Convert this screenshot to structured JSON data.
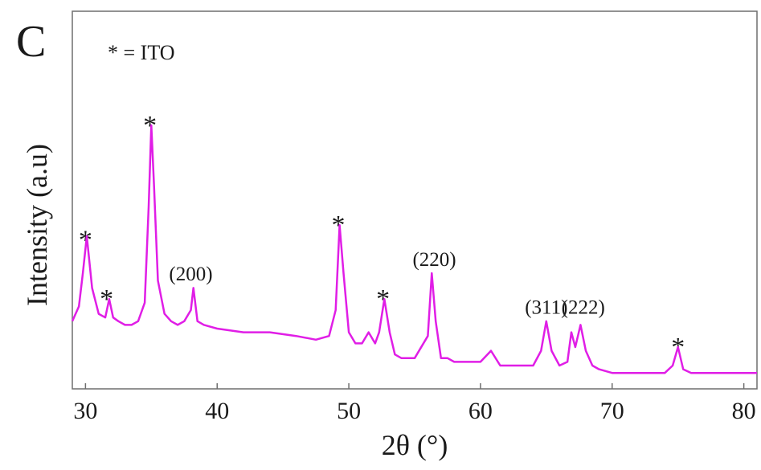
{
  "chart_data": {
    "type": "line",
    "panel_label": "C",
    "legend_text": "* = ITO",
    "xlabel": "2θ (°)",
    "ylabel": "Intensity (a.u)",
    "xlim": [
      29,
      81
    ],
    "xticks": [
      "30",
      "40",
      "50",
      "60",
      "70",
      "80"
    ],
    "ylim": [
      0,
      100
    ],
    "grid": false,
    "series_color": "#e01ee6",
    "series": [
      {
        "x": [
          29.0,
          29.5,
          29.8,
          30.1,
          30.5,
          31.0,
          31.5,
          31.8,
          32.1,
          32.5,
          33.0,
          33.5,
          34.0,
          34.5,
          34.8,
          35.0,
          35.2,
          35.5,
          36.0,
          36.5,
          37.0,
          37.5,
          38.0,
          38.2,
          38.5,
          39.0,
          40.0,
          42.0,
          44.0,
          46.0,
          47.5,
          48.5,
          49.0,
          49.3,
          49.6,
          50.0,
          50.5,
          51.0,
          51.5,
          52.0,
          52.3,
          52.7,
          53.1,
          53.5,
          54.0,
          55.0,
          56.0,
          56.3,
          56.6,
          57.0,
          57.5,
          58.0,
          59.0,
          60.0,
          60.8,
          61.5,
          62.0,
          63.0,
          64.0,
          64.6,
          65.0,
          65.4,
          66.0,
          66.6,
          66.9,
          67.2,
          67.6,
          68.0,
          68.5,
          69.0,
          70.0,
          71.0,
          72.0,
          73.0,
          74.0,
          74.6,
          75.0,
          75.4,
          76.0,
          77.0,
          78.0,
          79.0,
          80.0,
          81.0
        ],
        "y": [
          17,
          21,
          30,
          40,
          26,
          19,
          18,
          23,
          18,
          17,
          16,
          16,
          17,
          22,
          48,
          70,
          54,
          28,
          19,
          17,
          16,
          17,
          20,
          26,
          17,
          16,
          15,
          14,
          14,
          13,
          12,
          13,
          20,
          43,
          30,
          14,
          11,
          11,
          14,
          11,
          14,
          23,
          14,
          8,
          7,
          7,
          13,
          30,
          17,
          7,
          7,
          6,
          6,
          6,
          9,
          5,
          5,
          5,
          5,
          9,
          17,
          9,
          5,
          6,
          14,
          10,
          16,
          9,
          5,
          4,
          3,
          3,
          3,
          3,
          3,
          5,
          10,
          4,
          3,
          3,
          3,
          3,
          3,
          3
        ]
      }
    ],
    "peak_labels": [
      {
        "text": "*",
        "x": 30.0,
        "y": 41
      },
      {
        "text": "*",
        "x": 31.6,
        "y": 25
      },
      {
        "text": "*",
        "x": 34.9,
        "y": 72
      },
      {
        "text": "(200)",
        "x": 38.0,
        "y": 28
      },
      {
        "text": "*",
        "x": 49.2,
        "y": 45
      },
      {
        "text": "*",
        "x": 52.6,
        "y": 25
      },
      {
        "text": "(220)",
        "x": 56.5,
        "y": 32
      },
      {
        "text": "(311)",
        "x": 65.0,
        "y": 19
      },
      {
        "text": "(222)",
        "x": 67.8,
        "y": 19
      },
      {
        "text": "*",
        "x": 75.0,
        "y": 12
      }
    ]
  }
}
